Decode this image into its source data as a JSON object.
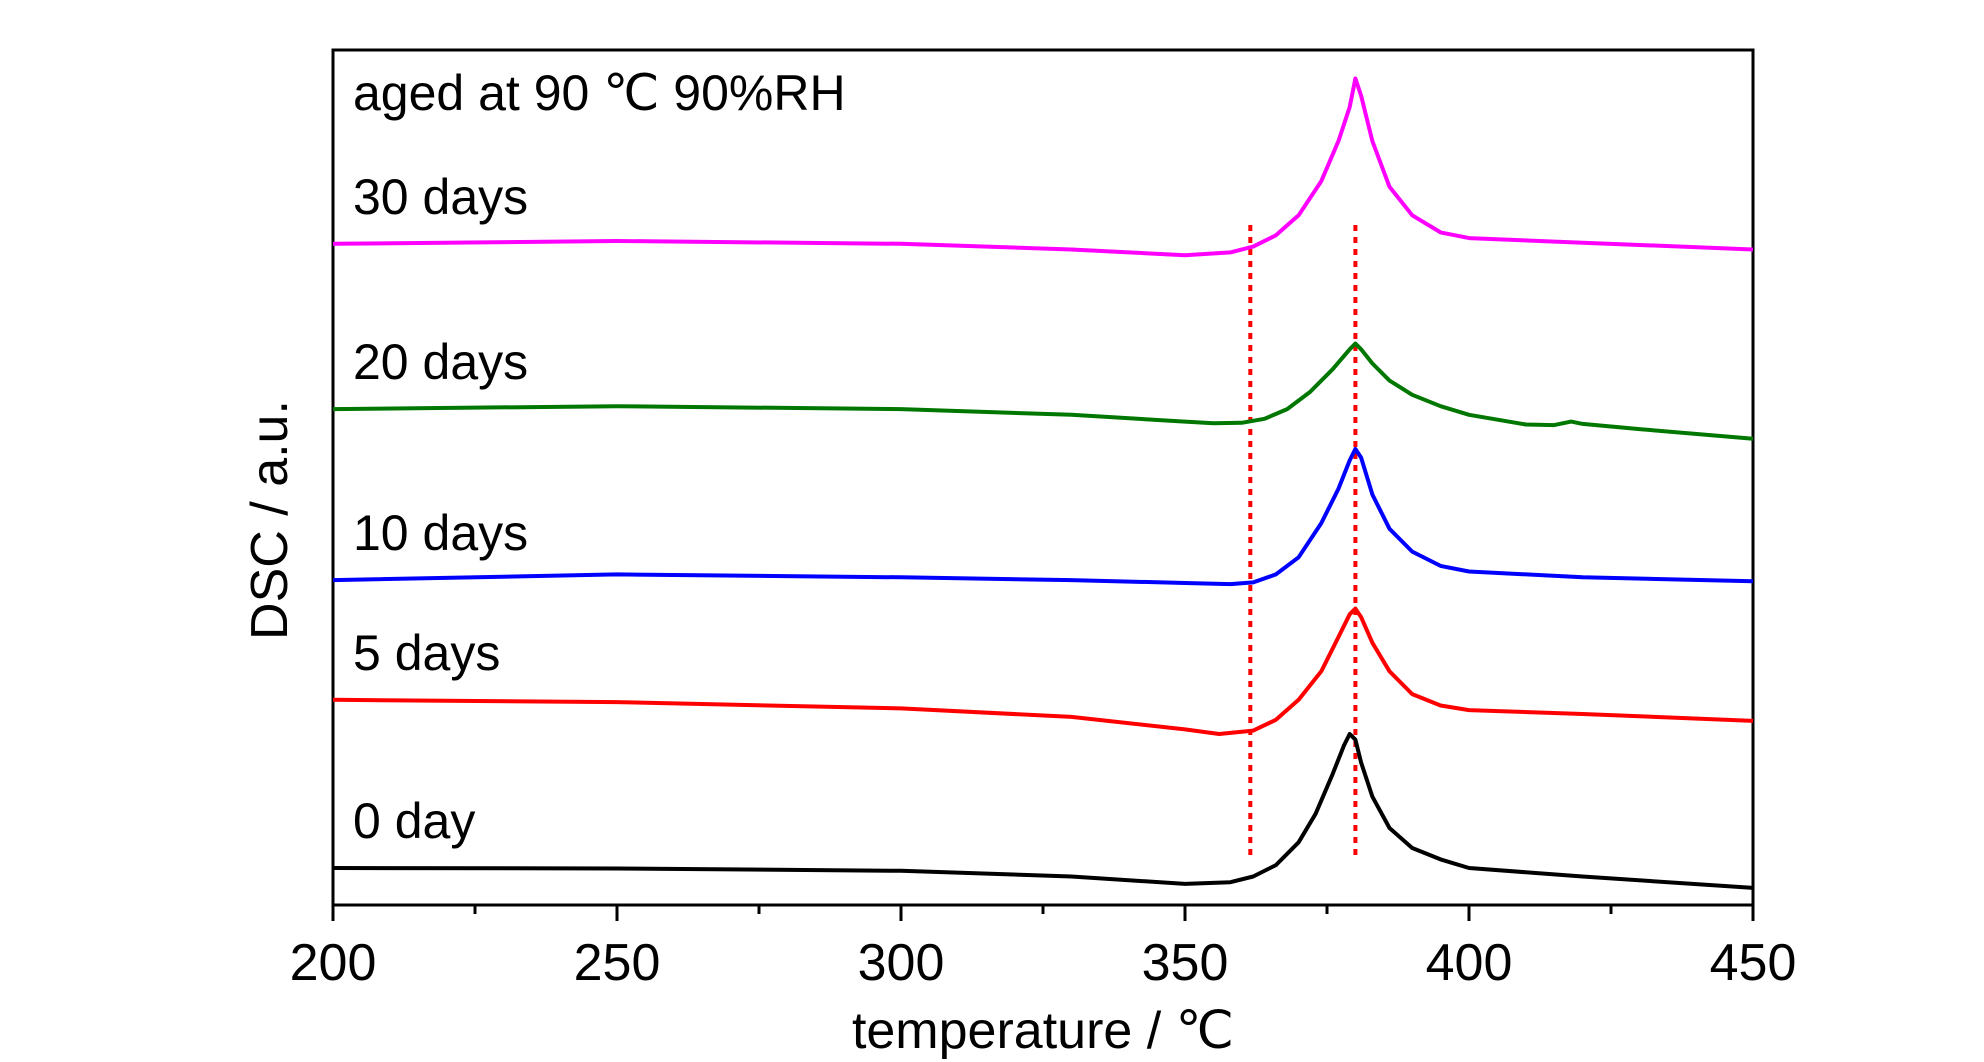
{
  "chart_data": {
    "type": "line",
    "title": "",
    "annotation": "aged at 90 ℃ 90%RH",
    "xlabel": "temperature / ℃",
    "ylabel": "DSC / a.u.",
    "xlim": [
      200,
      450
    ],
    "x_ticks": [
      200,
      250,
      300,
      350,
      400,
      450
    ],
    "y_ticks_shown": false,
    "grid": false,
    "legend": "none",
    "reference_lines": [
      {
        "x": 361.5,
        "style": "dotted",
        "color": "#ff0000"
      },
      {
        "x": 380,
        "style": "dotted",
        "color": "#ff0000"
      }
    ],
    "series": [
      {
        "name": "0 day",
        "color": "#000000",
        "x": [
          200,
          250,
          300,
          330,
          350,
          358,
          362,
          366,
          370,
          373,
          376,
          378,
          379,
          380,
          381,
          383,
          386,
          390,
          395,
          400,
          420,
          450
        ],
        "y": [
          0.5,
          0.4,
          0.0,
          -1.0,
          -2.3,
          -2.0,
          -1.0,
          1.0,
          5.0,
          10.0,
          17.0,
          22.0,
          24.0,
          23.0,
          19.0,
          13.0,
          7.5,
          4.0,
          2.0,
          0.5,
          -1.0,
          -3.0
        ]
      },
      {
        "name": "5 days",
        "color": "#ff0000",
        "x": [
          200,
          250,
          300,
          330,
          350,
          356,
          362,
          366,
          370,
          374,
          377,
          379,
          380,
          381,
          383,
          386,
          390,
          395,
          400,
          420,
          450
        ],
        "y": [
          30.0,
          29.6,
          28.5,
          27.0,
          24.8,
          24.0,
          24.6,
          26.5,
          30.0,
          35.0,
          41.0,
          45.0,
          46.0,
          44.5,
          40.0,
          35.0,
          31.0,
          29.0,
          28.2,
          27.5,
          26.3
        ]
      },
      {
        "name": "10 days",
        "color": "#0000ff",
        "x": [
          200,
          250,
          300,
          330,
          350,
          358,
          362,
          366,
          370,
          374,
          377,
          379,
          380,
          381,
          383,
          386,
          390,
          395,
          400,
          420,
          450
        ],
        "y": [
          51.0,
          52.0,
          51.5,
          51.0,
          50.5,
          50.3,
          50.6,
          52.0,
          55.0,
          61.0,
          67.0,
          72.0,
          74.0,
          72.5,
          66.0,
          60.0,
          56.0,
          53.5,
          52.5,
          51.5,
          50.8
        ]
      },
      {
        "name": "20 days",
        "color": "#007700",
        "x": [
          200,
          250,
          300,
          330,
          350,
          355,
          360,
          364,
          368,
          372,
          376,
          379,
          380,
          381,
          383,
          386,
          390,
          395,
          400,
          410,
          415,
          418,
          420,
          430,
          450
        ],
        "y": [
          81.0,
          81.5,
          81.0,
          80.0,
          78.8,
          78.5,
          78.6,
          79.3,
          81.0,
          84.0,
          88.0,
          91.5,
          92.5,
          91.5,
          89.0,
          86.0,
          83.5,
          81.5,
          80.0,
          78.3,
          78.2,
          78.8,
          78.4,
          77.5,
          75.8
        ]
      },
      {
        "name": "30 days",
        "color": "#ff00ff",
        "x": [
          200,
          250,
          300,
          330,
          350,
          358,
          362,
          366,
          370,
          374,
          377,
          379,
          380,
          381,
          383,
          386,
          390,
          395,
          400,
          420,
          450
        ],
        "y": [
          110.0,
          110.5,
          110.0,
          109.0,
          108.0,
          108.5,
          109.5,
          111.5,
          115.0,
          121.0,
          128.0,
          134.0,
          139.0,
          136.0,
          128.0,
          120.0,
          115.0,
          112.0,
          111.0,
          110.2,
          109.0
        ]
      }
    ]
  }
}
